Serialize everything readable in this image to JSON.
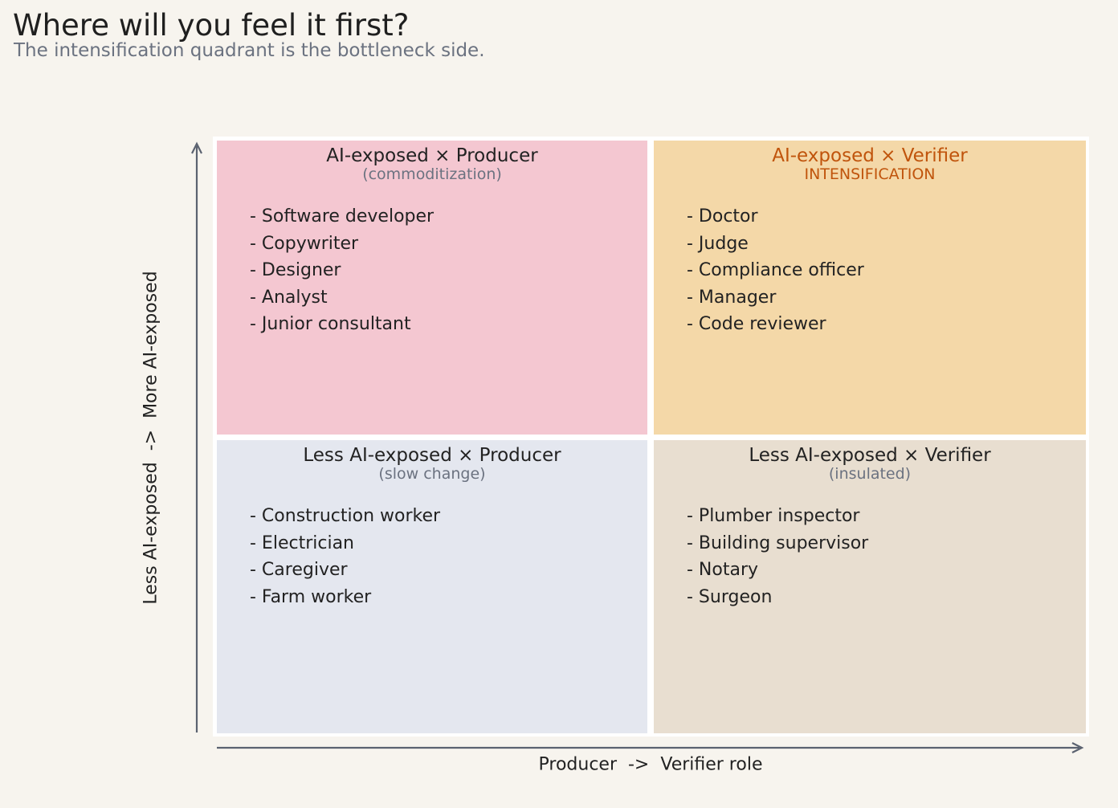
{
  "title": "Where will you feel it first?",
  "subtitle": "The intensification quadrant is the bottleneck side.",
  "axes": {
    "y_label": "Less AI-exposed  ->  More AI-exposed",
    "x_label": "Producer  ->  Verifier role",
    "axis_color": "#5b6270"
  },
  "quadrants": {
    "top_left": {
      "heading": "AI-exposed × Producer",
      "subheading": "(commoditization)",
      "background": "#f4c7d1",
      "heading_color": "#222222",
      "subheading_color": "#6b7280",
      "items": [
        "- Software developer",
        "- Copywriter",
        "- Designer",
        "- Analyst",
        "- Junior consultant"
      ]
    },
    "top_right": {
      "heading": "AI-exposed × Verifier",
      "subheading": "INTENSIFICATION",
      "background": "#f4d8a8",
      "heading_color": "#c0540c",
      "subheading_color": "#c0540c",
      "items": [
        "- Doctor",
        "- Judge",
        "- Compliance officer",
        "- Manager",
        "- Code reviewer"
      ]
    },
    "bottom_left": {
      "heading": "Less AI-exposed × Producer",
      "subheading": "(slow change)",
      "background": "#e4e7ef",
      "heading_color": "#222222",
      "subheading_color": "#6b7280",
      "items": [
        "- Construction worker",
        "- Electrician",
        "- Caregiver",
        "- Farm worker"
      ]
    },
    "bottom_right": {
      "heading": "Less AI-exposed × Verifier",
      "subheading": "(insulated)",
      "background": "#e8ded0",
      "heading_color": "#222222",
      "subheading_color": "#6b7280",
      "items": [
        "- Plumber inspector",
        "- Building supervisor",
        "- Notary",
        "- Surgeon"
      ]
    }
  }
}
